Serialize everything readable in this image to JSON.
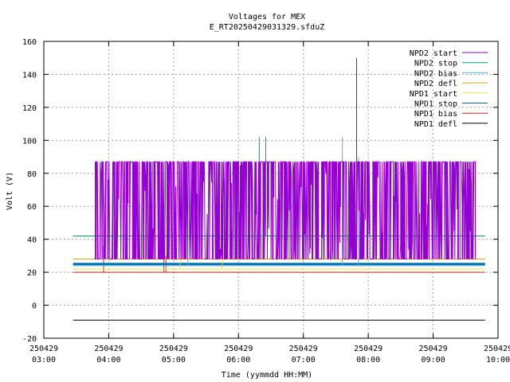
{
  "chart_data": {
    "type": "line",
    "title": "Voltages for MEX",
    "subtitle": "E_RT20250429031329.sfduZ",
    "xlabel": "Time (yymmdd HH:MM)",
    "ylabel": "Volt (V)",
    "x_range_hours": [
      3.0,
      10.0
    ],
    "ylim": [
      -20,
      160
    ],
    "grid": true,
    "legend_position": "top-right",
    "x_ticks": [
      {
        "hour": 3,
        "date": "250429",
        "time": "03:00"
      },
      {
        "hour": 4,
        "date": "250429",
        "time": "04:00"
      },
      {
        "hour": 5,
        "date": "250429",
        "time": "05:00"
      },
      {
        "hour": 6,
        "date": "250429",
        "time": "06:00"
      },
      {
        "hour": 7,
        "date": "250429",
        "time": "07:00"
      },
      {
        "hour": 8,
        "date": "250429",
        "time": "08:00"
      },
      {
        "hour": 9,
        "date": "250429",
        "time": "09:00"
      },
      {
        "hour": 10,
        "date": "250429",
        "time": "10:00"
      }
    ],
    "y_ticks": [
      -20,
      0,
      20,
      40,
      60,
      80,
      100,
      120,
      140,
      160
    ],
    "series": [
      {
        "name": "NPD2 start",
        "color": "#9400d3",
        "kind": "noisy",
        "t_start": 3.78,
        "t_end": 9.65,
        "low": 28,
        "high": 87,
        "spikes": [
          {
            "t": 7.82,
            "v": 150
          }
        ]
      },
      {
        "name": "NPD2 stop",
        "color": "#009e73",
        "kind": "flat",
        "t_start": 3.45,
        "t_end": 9.8,
        "value": 42,
        "spikes": [
          {
            "t": 6.32,
            "v": 102
          },
          {
            "t": 6.42,
            "v": 102
          },
          {
            "t": 8.82,
            "v": 88
          }
        ]
      },
      {
        "name": "NPD2 bias",
        "color": "#56b4e9",
        "kind": "flat",
        "t_start": 3.45,
        "t_end": 9.8,
        "value": 24,
        "spikes": [
          {
            "t": 5.22,
            "v": 88
          },
          {
            "t": 7.6,
            "v": 102
          },
          {
            "t": 7.85,
            "v": 90
          }
        ]
      },
      {
        "name": "NPD2 defl",
        "color": "#e69f00",
        "kind": "flat",
        "t_start": 3.45,
        "t_end": 9.8,
        "value": 28,
        "spikes": [
          {
            "t": 4.55,
            "v": 41
          },
          {
            "t": 4.62,
            "v": 38
          },
          {
            "t": 4.8,
            "v": 41
          },
          {
            "t": 6.28,
            "v": 41
          },
          {
            "t": 6.35,
            "v": 41
          },
          {
            "t": 9.02,
            "v": 41
          }
        ]
      },
      {
        "name": "NPD1 start",
        "color": "#f0e442",
        "kind": "flat",
        "t_start": 3.45,
        "t_end": 9.8,
        "value": 22,
        "spikes": [
          {
            "t": 5.1,
            "v": 41
          },
          {
            "t": 5.75,
            "v": 30
          }
        ]
      },
      {
        "name": "NPD1 stop",
        "color": "#0072b2",
        "kind": "flat",
        "t_start": 3.45,
        "t_end": 9.8,
        "value": 25,
        "spikes": []
      },
      {
        "name": "NPD1 bias",
        "color": "#e51e10",
        "kind": "flat",
        "t_start": 3.45,
        "t_end": 9.8,
        "value": 20,
        "spikes": [
          {
            "t": 3.92,
            "v": 36
          },
          {
            "t": 4.85,
            "v": 36
          },
          {
            "t": 4.88,
            "v": 30
          }
        ]
      },
      {
        "name": "NPD1 defl",
        "color": "#000000",
        "kind": "flat",
        "t_start": 3.45,
        "t_end": 9.8,
        "value": -9,
        "spikes": []
      }
    ]
  }
}
